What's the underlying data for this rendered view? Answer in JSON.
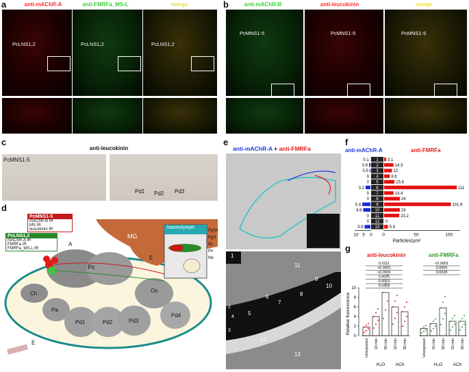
{
  "panels": {
    "a": {
      "letter": "a",
      "titles": [
        "anti-mAChR-A",
        "anti-FMRFa_MS-L",
        "merge"
      ],
      "labels": [
        "PcLNS1,2",
        "PcLNS1,2",
        "PcLNS1,2"
      ]
    },
    "b": {
      "letter": "b",
      "titles": [
        "anti-mAChR-B",
        "anti-leucokinin",
        "merge"
      ],
      "labels": [
        "PcMNS1-5",
        "PcMNS1-5",
        "PcMNS1-5"
      ]
    },
    "c": {
      "letter": "c",
      "title": "anti-leucokinin",
      "label_left": "PcMNS1-5",
      "pd_labels": [
        "Pd1",
        "Pd2",
        "Pd3"
      ]
    },
    "d": {
      "letter": "d",
      "box_red_title": "PcMNS1-5",
      "box_red_lines": [
        "mAChR-B IR",
        "MS IR",
        "leucokinin IR"
      ],
      "box_green_title": "PcLNS1,2",
      "box_green_lines": [
        "mAChR-A IR",
        "FMRFa IR",
        "FMRFa_MS-L IR"
      ],
      "organs": [
        "MG",
        "Pc",
        "Ch",
        "Pa",
        "Pd1",
        "Pd2",
        "Pd3",
        "Pd4",
        "Os",
        "A",
        "E",
        "E"
      ],
      "inset_title": "haemolymph",
      "layers": [
        "PgSh",
        "PgS",
        "NL",
        "Pn",
        "Nb"
      ]
    },
    "e": {
      "letter": "e",
      "title_a": "anti-mAChR-A",
      "title_plus": " + ",
      "title_b": "anti-FMRFa",
      "em_numbers": [
        "1",
        "2",
        "3",
        "4",
        "5",
        "6",
        "7",
        "8",
        "9",
        "10",
        "11",
        "12",
        "13"
      ]
    },
    "f": {
      "letter": "f",
      "left_title": "anti-mAChR-A",
      "right_title": "anti-FMRFa",
      "xlabel": "Particles/µm²",
      "left_ticks": [
        "10",
        "5",
        "0"
      ],
      "right_ticks": [
        "0",
        "50",
        "100"
      ]
    },
    "g": {
      "letter": "g",
      "left_title": "anti-leucokinin",
      "right_title": "anti-FMRFa",
      "ylabel": "Relative fluorescence",
      "yticks": [
        "0",
        "2",
        "4",
        "6",
        "8",
        "10"
      ],
      "xcats": [
        "Unexposed",
        "10 min",
        "30 min",
        "10 min",
        "30 min"
      ],
      "groups": [
        "H₂O",
        "ACh"
      ],
      "left_pvals": [
        "0.0111",
        "<0.0001",
        "<0.0001",
        "0.0001",
        "0.0003",
        "0.0428"
      ],
      "right_pvals": [
        "<0.0001",
        "0.0005",
        "0.0028"
      ]
    }
  },
  "chart_data": [
    {
      "type": "bar",
      "title": "anti-mAChR-A",
      "xlabel": "Particles/µm²",
      "categories": [
        "1",
        "2",
        "3",
        "4",
        "5",
        "6",
        "7",
        "8",
        "9",
        "10",
        "11",
        "12",
        "13"
      ],
      "values": [
        0.1,
        0.9,
        0.5,
        0,
        0,
        3.2,
        0,
        0,
        5.4,
        4.8,
        0,
        0,
        3.9
      ],
      "xlim": [
        10,
        0
      ]
    },
    {
      "type": "bar",
      "title": "anti-FMRFa",
      "xlabel": "Particles/µm²",
      "categories": [
        "1",
        "2",
        "3",
        "4",
        "5",
        "6",
        "7",
        "8",
        "9",
        "10",
        "11",
        "12",
        "13"
      ],
      "values": [
        3.1,
        14.3,
        12,
        8.6,
        15.8,
        111,
        14.4,
        24,
        101.9,
        24,
        23.2,
        0,
        5.9
      ],
      "xlim": [
        0,
        115
      ]
    },
    {
      "type": "bar",
      "title": "anti-leucokinin",
      "ylabel": "Relative fluorescence",
      "categories": [
        "Unexposed",
        "H₂O 10 min",
        "H₂O 30 min",
        "ACh 10 min",
        "ACh 30 min"
      ],
      "values": [
        1.8,
        4.0,
        9.0,
        6.0,
        5.0
      ],
      "ylim": [
        0,
        10
      ]
    },
    {
      "type": "bar",
      "title": "anti-FMRFa",
      "ylabel": "Relative fluorescence",
      "categories": [
        "Unexposed",
        "H₂O 10 min",
        "H₂O 30 min",
        "ACh 10 min",
        "ACh 30 min"
      ],
      "values": [
        1.5,
        2.5,
        5.8,
        3.0,
        3.0
      ],
      "ylim": [
        0,
        10
      ]
    }
  ]
}
